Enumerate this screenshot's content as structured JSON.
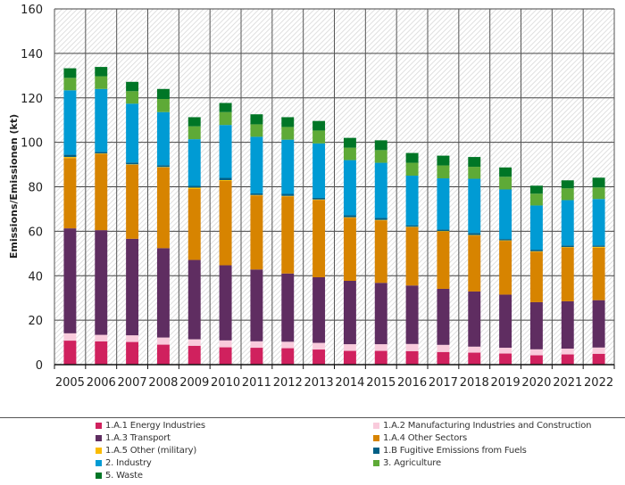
{
  "chart_data": {
    "type": "bar",
    "stacked": true,
    "title": "",
    "xlabel": "",
    "ylabel": "Emissions/Emissionen (kt)",
    "ylim": [
      0,
      160
    ],
    "yticks": [
      0,
      20,
      40,
      60,
      80,
      100,
      120,
      140,
      160
    ],
    "grid": true,
    "legend_position": "bottom",
    "categories": [
      "2005",
      "2006",
      "2007",
      "2008",
      "2009",
      "2010",
      "2011",
      "2012",
      "2013",
      "2014",
      "2015",
      "2016",
      "2017",
      "2018",
      "2019",
      "2020",
      "2021",
      "2022"
    ],
    "series": [
      {
        "name": "1.A.1 Energy Industries",
        "color": "#d0215e",
        "values": [
          10.8,
          10.5,
          10.2,
          9.0,
          8.5,
          7.8,
          7.6,
          7.4,
          6.8,
          6.2,
          6.2,
          6.1,
          5.7,
          5.4,
          5.0,
          4.2,
          4.6,
          4.9
        ]
      },
      {
        "name": "1.A.2 Manufacturing Industries and Construction",
        "color": "#f9cbdc",
        "values": [
          3.3,
          2.9,
          3.0,
          3.2,
          2.9,
          3.1,
          2.9,
          2.9,
          3.0,
          3.0,
          3.0,
          3.2,
          3.2,
          2.7,
          2.6,
          2.7,
          2.6,
          2.8
        ]
      },
      {
        "name": "1.A.3 Transport",
        "color": "#5f2d61",
        "values": [
          47.2,
          47.1,
          43.4,
          40.2,
          35.7,
          33.8,
          32.3,
          30.7,
          29.5,
          28.5,
          27.6,
          26.3,
          25.2,
          24.8,
          23.9,
          21.2,
          21.3,
          21.3
        ]
      },
      {
        "name": "1.A.4 Other Sectors",
        "color": "#d78400",
        "values": [
          31.6,
          34.3,
          33.3,
          36.3,
          31.9,
          37.9,
          33.3,
          34.7,
          34.8,
          28.4,
          28.1,
          26.2,
          25.7,
          25.2,
          24.2,
          22.7,
          24.2,
          23.6
        ]
      },
      {
        "name": "1.A.5 Other (military)",
        "color": "#fabb00",
        "values": [
          0.5,
          0.2,
          0.2,
          0.2,
          0.6,
          0.4,
          0.2,
          0.2,
          0.2,
          0.2,
          0.2,
          0.2,
          0.3,
          0.2,
          0.2,
          0.2,
          0.2,
          0.4
        ]
      },
      {
        "name": "1.B Fugitive Emissions from Fuels",
        "color": "#005f85",
        "values": [
          1.0,
          0.7,
          0.8,
          0.8,
          0.8,
          1.0,
          0.7,
          0.9,
          0.7,
          0.9,
          0.9,
          0.7,
          0.7,
          0.9,
          0.6,
          0.7,
          0.7,
          0.6
        ]
      },
      {
        "name": "2. Industry",
        "color": "#009bd4",
        "values": [
          29.0,
          28.3,
          26.5,
          23.9,
          21.0,
          23.8,
          25.5,
          24.4,
          24.5,
          24.8,
          24.8,
          22.3,
          23.0,
          24.4,
          22.3,
          19.9,
          20.4,
          20.9
        ]
      },
      {
        "name": "3. Agriculture",
        "color": "#5eaa37",
        "values": [
          5.6,
          5.7,
          5.6,
          5.9,
          5.8,
          5.8,
          5.6,
          5.7,
          5.8,
          5.6,
          5.7,
          5.8,
          5.8,
          5.4,
          5.7,
          5.3,
          5.3,
          5.2
        ]
      },
      {
        "name": "5. Waste",
        "color": "#007626",
        "values": [
          4.3,
          4.2,
          4.2,
          4.5,
          4.1,
          4.1,
          4.5,
          4.4,
          4.3,
          4.4,
          4.4,
          4.4,
          4.4,
          4.4,
          4.2,
          3.6,
          3.6,
          4.4
        ]
      }
    ],
    "legend_order": [
      "1.A.1 Energy Industries",
      "1.A.2 Manufacturing Industries and Construction",
      "1.A.3 Transport",
      "1.A.4 Other Sectors",
      "1.A.5 Other (military)",
      "1.B Fugitive Emissions from Fuels",
      "2. Industry",
      "3. Agriculture",
      "5. Waste"
    ]
  }
}
